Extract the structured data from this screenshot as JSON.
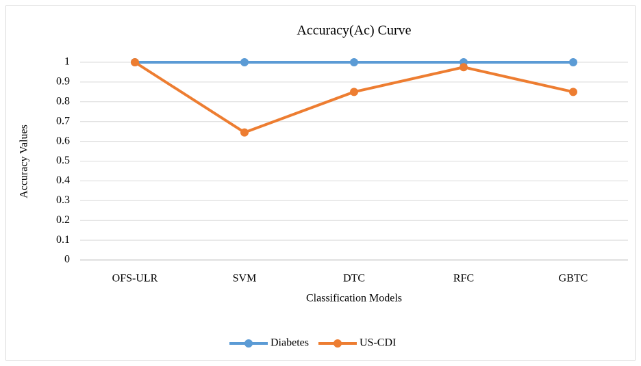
{
  "chart_data": {
    "type": "line",
    "title": "Accuracy(Ac) Curve",
    "x_label": "Classification Models",
    "y_label": "Accuracy Values",
    "categories": [
      "OFS-ULR",
      "SVM",
      "DTC",
      "RFC",
      "GBTC"
    ],
    "series": [
      {
        "name": "Diabetes",
        "color": "#5b9bd5",
        "values": [
          1,
          1,
          1,
          1,
          1
        ]
      },
      {
        "name": "US-CDI",
        "color": "#ed7d31",
        "values": [
          1,
          0.645,
          0.85,
          0.975,
          0.85
        ]
      }
    ],
    "ylim": [
      0,
      1
    ],
    "yticks": [
      0,
      0.1,
      0.2,
      0.3,
      0.4,
      0.5,
      0.6,
      0.7,
      0.8,
      0.9,
      1
    ],
    "grid": true,
    "legend": "bottom"
  }
}
